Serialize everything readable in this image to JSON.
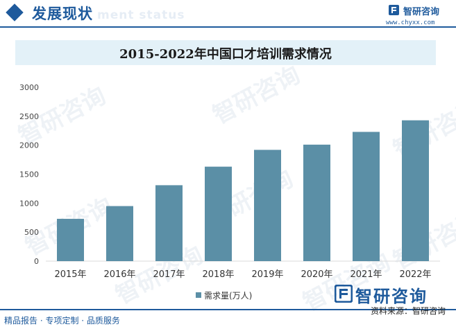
{
  "header": {
    "title": "发展现状",
    "subtitle": "ment status",
    "logo_name": "智研咨询",
    "logo_url": "www.chyxx.com"
  },
  "colors": {
    "accent": "#1e5a9c",
    "bar": "#5b8fa6",
    "title_band": "#e3f1f8"
  },
  "watermark_text": "智研咨询",
  "chart_data": {
    "type": "bar",
    "title": "2015-2022年中国口才培训需求情况",
    "categories": [
      "2015年",
      "2016年",
      "2017年",
      "2018年",
      "2019年",
      "2020年",
      "2021年",
      "2022年"
    ],
    "series": [
      {
        "name": "需求量(万人)",
        "values": [
          730,
          950,
          1310,
          1630,
          1920,
          2010,
          2230,
          2430
        ]
      }
    ],
    "ylim": [
      0,
      3000
    ],
    "yticks": [
      0,
      500,
      1000,
      1500,
      2000,
      2500,
      3000
    ],
    "grid": false,
    "legend": "bottom-center"
  },
  "footer": {
    "left": "精品报告 · 专项定制 · 品质服务",
    "brand": "智研咨询",
    "source": "资料来源：智研咨询"
  }
}
